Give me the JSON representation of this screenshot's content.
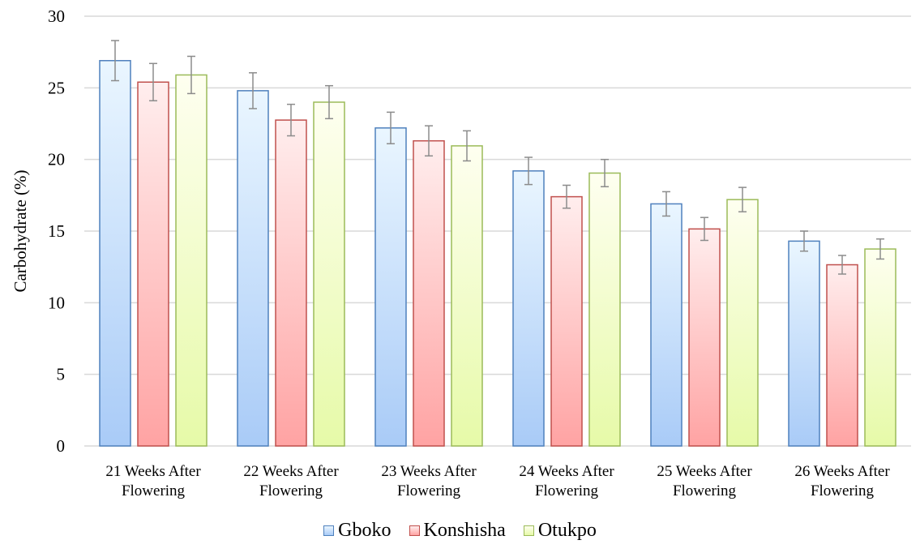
{
  "chart_data": {
    "type": "bar",
    "title": "",
    "xlabel": "",
    "ylabel": "Carbohydrate (%)",
    "ylim": [
      0,
      30
    ],
    "yticks": [
      0,
      5,
      10,
      15,
      20,
      25,
      30
    ],
    "grid": true,
    "legend_position": "bottom",
    "categories": [
      [
        "21 Weeks After",
        "Flowering"
      ],
      [
        "22 Weeks After",
        "Flowering"
      ],
      [
        "23 Weeks After",
        "Flowering"
      ],
      [
        "24 Weeks After",
        "Flowering"
      ],
      [
        "25 Weeks After",
        "Flowering"
      ],
      [
        "26 Weeks After",
        "Flowering"
      ]
    ],
    "series": [
      {
        "name": "Gboko",
        "color": "#4F81BD",
        "fill_top": "#EAF6FF",
        "fill_bottom": "#A9CBF7",
        "values": [
          26.9,
          24.8,
          22.2,
          19.2,
          16.9,
          14.3
        ],
        "errors": [
          1.4,
          1.25,
          1.1,
          0.95,
          0.85,
          0.7
        ]
      },
      {
        "name": "Konshisha",
        "color": "#C0504D",
        "fill_top": "#FFEEEE",
        "fill_bottom": "#FFA3A3",
        "values": [
          25.4,
          22.75,
          21.3,
          17.4,
          15.15,
          12.65
        ],
        "errors": [
          1.3,
          1.1,
          1.05,
          0.8,
          0.8,
          0.65
        ]
      },
      {
        "name": "Otukpo",
        "color": "#9BBB59",
        "fill_top": "#FEFFF0",
        "fill_bottom": "#E6FAA8",
        "values": [
          25.9,
          24.0,
          20.95,
          19.05,
          17.2,
          13.75
        ],
        "errors": [
          1.3,
          1.15,
          1.05,
          0.95,
          0.85,
          0.7
        ]
      }
    ]
  }
}
